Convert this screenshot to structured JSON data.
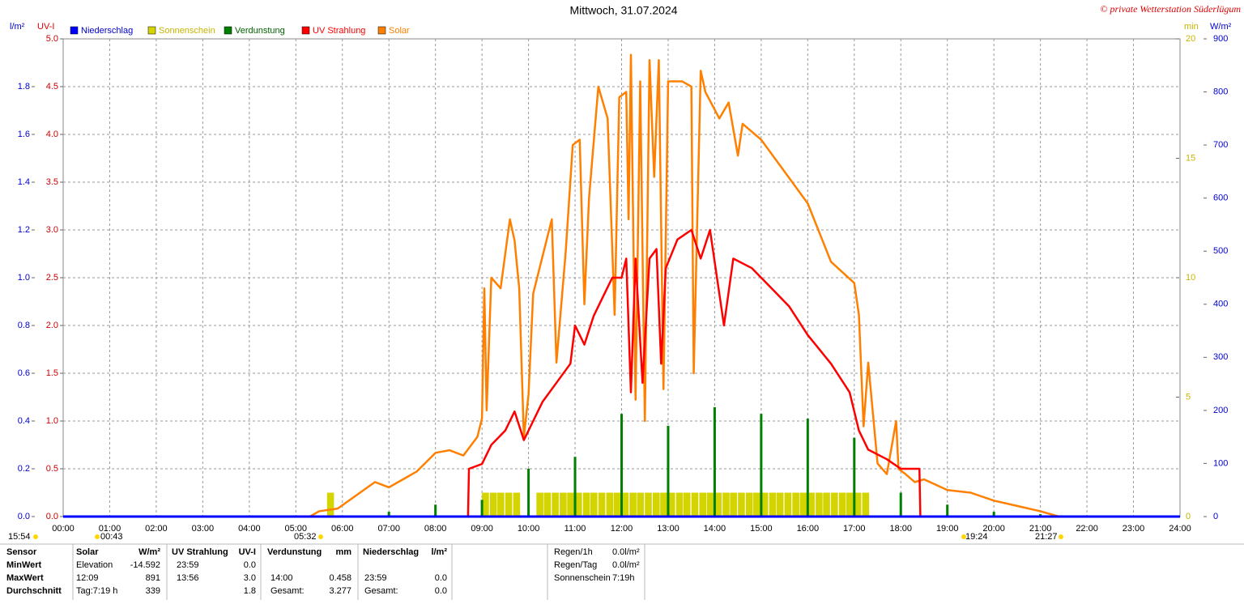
{
  "chart_data": {
    "type": "line",
    "title": "Mittwoch, 31.07.2024",
    "copyright": "© private Wetterstation Süderlügum",
    "ylabel": "l/m²",
    "uvlabel": "UV-I",
    "minlabel": "min",
    "y2label": "W/m²",
    "xlim": [
      0,
      24
    ],
    "xticks": [
      {
        "value": 0,
        "label": "00:00"
      },
      {
        "value": 1,
        "label": "01:00"
      },
      {
        "value": 2,
        "label": "02:00"
      },
      {
        "value": 3,
        "label": "03:00"
      },
      {
        "value": 4,
        "label": "04:00"
      },
      {
        "value": 5,
        "label": "05:00"
      },
      {
        "value": 6,
        "label": "06:00"
      },
      {
        "value": 7,
        "label": "07:00"
      },
      {
        "value": 8,
        "label": "08:00"
      },
      {
        "value": 9,
        "label": "09:00"
      },
      {
        "value": 10,
        "label": "10:00"
      },
      {
        "value": 11,
        "label": "11:00"
      },
      {
        "value": 12,
        "label": "12:00"
      },
      {
        "value": 13,
        "label": "13:00"
      },
      {
        "value": 14,
        "label": "14:00"
      },
      {
        "value": 15,
        "label": "15:00"
      },
      {
        "value": 16,
        "label": "16:00"
      },
      {
        "value": 17,
        "label": "17:00"
      },
      {
        "value": 18,
        "label": "18:00"
      },
      {
        "value": 19,
        "label": "19:00"
      },
      {
        "value": 20,
        "label": "20:00"
      },
      {
        "value": 21,
        "label": "21:00"
      },
      {
        "value": 22,
        "label": "22:00"
      },
      {
        "value": 23,
        "label": "23:00"
      },
      {
        "value": 24,
        "label": "24:00"
      }
    ],
    "ylim": [
      0,
      2
    ],
    "yticks": [
      {
        "value": 0,
        "label": "0.0"
      },
      0.2,
      0.4,
      0.6,
      0.8,
      {
        "value": 1,
        "label": "1.0"
      },
      1.2,
      1.4,
      1.6,
      1.8
    ],
    "uvlim": [
      0,
      5
    ],
    "uvticks": [
      {
        "value": 0,
        "label": "0.0"
      },
      0.5,
      {
        "value": 1,
        "label": "1.0"
      },
      1.5,
      {
        "value": 2,
        "label": "2.0"
      },
      2.5,
      {
        "value": 3,
        "label": "3.0"
      },
      3.5,
      {
        "value": 4,
        "label": "4.0"
      },
      4.5,
      {
        "value": 5,
        "label": "5.0"
      }
    ],
    "minlim": [
      0,
      20
    ],
    "minticks": [
      0,
      5,
      10,
      15,
      20
    ],
    "y2lim": [
      0,
      900
    ],
    "y2ticks": [
      0,
      100,
      200,
      300,
      400,
      500,
      600,
      700,
      800,
      900
    ],
    "grid": true,
    "series": [
      {
        "name": "Niederschlag",
        "color": "#0000ff",
        "axis": "y",
        "kind": "line",
        "x": [
          0,
          24
        ],
        "values": [
          0,
          0
        ]
      },
      {
        "name": "Sonnenschein",
        "color": "#d4d400",
        "axis": "min",
        "kind": "bars",
        "x": [
          5.67,
          9,
          9.17,
          9.33,
          9.5,
          9.67,
          10.17,
          10.33,
          10.5,
          10.67,
          10.83,
          11,
          11.17,
          11.33,
          11.5,
          11.67,
          11.83,
          12,
          12.17,
          12.33,
          12.5,
          12.67,
          12.83,
          13,
          13.17,
          13.33,
          13.5,
          13.67,
          13.83,
          14,
          14.17,
          14.33,
          14.5,
          14.67,
          14.83,
          15,
          15.17,
          15.33,
          15.5,
          15.67,
          15.83,
          16,
          16.17,
          16.33,
          16.5,
          16.67,
          16.83,
          17,
          17.17
        ],
        "values": [
          1,
          1,
          1,
          1,
          1,
          1,
          1,
          1,
          1,
          1,
          1,
          1,
          1,
          1,
          1,
          1,
          1,
          1,
          1,
          1,
          1,
          1,
          1,
          1,
          1,
          1,
          1,
          1,
          1,
          1,
          1,
          1,
          1,
          1,
          1,
          1,
          1,
          1,
          1,
          1,
          1,
          1,
          1,
          1,
          1,
          1,
          1,
          1,
          1
        ]
      },
      {
        "name": "Verdunstung",
        "color": "#008000",
        "axis": "y",
        "kind": "spikes",
        "x": [
          7,
          8,
          9,
          10,
          11,
          12,
          13,
          14,
          15,
          16,
          17,
          18,
          19,
          20,
          21
        ],
        "values": [
          0.02,
          0.05,
          0.07,
          0.2,
          0.25,
          0.43,
          0.38,
          0.458,
          0.43,
          0.41,
          0.33,
          0.1,
          0.05,
          0.02,
          0.01
        ]
      },
      {
        "name": "UV Strahlung",
        "color": "#ff0000",
        "axis": "uv",
        "kind": "line",
        "x": [
          8.7,
          8.72,
          9,
          9.2,
          9.5,
          9.7,
          9.9,
          10.1,
          10.3,
          10.6,
          10.9,
          11,
          11.2,
          11.4,
          11.6,
          11.8,
          12,
          12.1,
          12.2,
          12.3,
          12.45,
          12.6,
          12.75,
          12.85,
          12.95,
          13.2,
          13.5,
          13.7,
          13.9,
          14.2,
          14.4,
          14.8,
          15.2,
          15.6,
          16,
          16.5,
          16.9,
          17.1,
          17.3,
          17.7,
          18,
          18.4,
          18.42
        ],
        "values": [
          0,
          0.5,
          0.55,
          0.75,
          0.9,
          1.1,
          0.8,
          1,
          1.2,
          1.4,
          1.6,
          2,
          1.8,
          2.1,
          2.3,
          2.5,
          2.5,
          2.7,
          1.3,
          2.7,
          1.4,
          2.7,
          2.8,
          1.6,
          2.6,
          2.9,
          3,
          2.7,
          3,
          2,
          2.7,
          2.6,
          2.4,
          2.2,
          1.9,
          1.6,
          1.3,
          0.9,
          0.7,
          0.6,
          0.5,
          0.5,
          0
        ]
      },
      {
        "name": "Solar",
        "color": "#ff8000",
        "axis": "y2",
        "kind": "line",
        "x": [
          5.3,
          5.5,
          5.9,
          6.3,
          6.7,
          7,
          7.3,
          7.6,
          8,
          8.3,
          8.6,
          8.9,
          9,
          9.05,
          9.1,
          9.2,
          9.4,
          9.6,
          9.7,
          9.8,
          9.9,
          10,
          10.1,
          10.3,
          10.5,
          10.6,
          10.8,
          10.95,
          11.1,
          11.2,
          11.3,
          11.5,
          11.7,
          11.85,
          11.95,
          12.1,
          12.15,
          12.2,
          12.3,
          12.4,
          12.5,
          12.6,
          12.7,
          12.75,
          12.8,
          12.9,
          13,
          13.3,
          13.5,
          13.55,
          13.7,
          13.8,
          14.1,
          14.3,
          14.5,
          14.6,
          15,
          15.5,
          16,
          16.5,
          17,
          17.1,
          17.2,
          17.3,
          17.5,
          17.7,
          17.9,
          17.95,
          18.1,
          18.3,
          18.5,
          19,
          19.5,
          20,
          20.5,
          21,
          21.4
        ],
        "values": [
          0,
          10,
          15,
          40,
          65,
          55,
          70,
          85,
          120,
          125,
          115,
          150,
          185,
          430,
          200,
          450,
          430,
          560,
          520,
          430,
          150,
          230,
          420,
          490,
          560,
          290,
          500,
          700,
          710,
          400,
          600,
          810,
          750,
          380,
          790,
          800,
          560,
          870,
          220,
          820,
          180,
          860,
          640,
          750,
          860,
          240,
          820,
          820,
          810,
          270,
          840,
          800,
          750,
          780,
          680,
          740,
          710,
          650,
          590,
          480,
          440,
          380,
          170,
          290,
          100,
          80,
          180,
          90,
          80,
          65,
          70,
          50,
          45,
          30,
          20,
          10,
          0
        ]
      }
    ],
    "sun_times": [
      "15:54",
      "00:43",
      "05:32",
      "19:24",
      "21:27"
    ],
    "stats": {
      "rows": [
        [
          "Sensor",
          "Solar",
          "W/m²",
          "UV Strahlung",
          "UV-I",
          "Verdunstung",
          "mm",
          "Niederschlag",
          "l/m²"
        ],
        [
          "MinWert",
          "Elevation",
          "-14.592",
          "23:59",
          "0.0",
          null,
          null,
          null,
          null
        ],
        [
          "MaxWert",
          "12:09",
          "891",
          "13:56",
          "3.0",
          "14:00",
          "0.458",
          "23:59",
          "0.0"
        ],
        [
          "Durchschnitt",
          "Tag:7:19 h",
          "339",
          null,
          "1.8",
          "Gesamt:",
          "3.277",
          "Gesamt:",
          "0.0"
        ]
      ]
    },
    "info": [
      [
        "Regen/1h",
        "0.0l/m²"
      ],
      [
        "Regen/Tag",
        "0.0l/m²"
      ],
      [
        "Sonnenschein",
        "7:19h"
      ]
    ]
  }
}
